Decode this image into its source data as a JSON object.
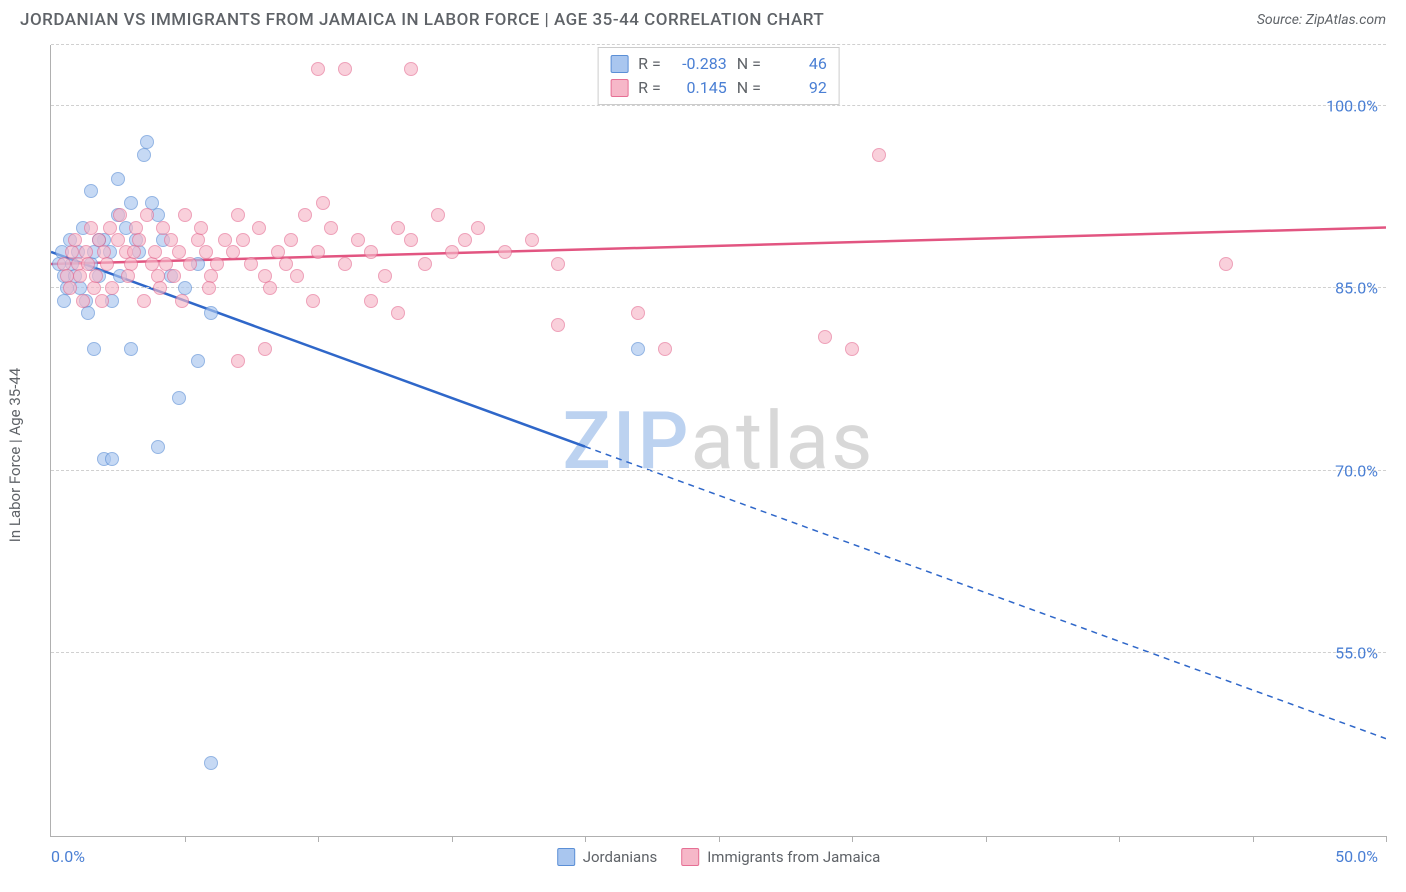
{
  "header": {
    "title": "JORDANIAN VS IMMIGRANTS FROM JAMAICA IN LABOR FORCE | AGE 35-44 CORRELATION CHART",
    "source": "Source: ZipAtlas.com"
  },
  "chart": {
    "type": "scatter",
    "y_axis_label": "In Labor Force | Age 35-44",
    "background_color": "#ffffff",
    "grid_color": "#d0d0d0",
    "axis_color": "#b0b0b0",
    "tick_label_color": "#4a7fd4",
    "watermark": {
      "part1": "ZIP",
      "part2": "atlas",
      "color1": "#bcd2f0",
      "color2": "#d8d8d8"
    },
    "xlim": [
      0,
      50
    ],
    "ylim": [
      40,
      105
    ],
    "x_ticks_pct": [
      10,
      20,
      30,
      40,
      50,
      60,
      70,
      80,
      90,
      100
    ],
    "x_min_label": "0.0%",
    "x_max_label": "50.0%",
    "y_ticks": [
      {
        "v": 100,
        "label": "100.0%"
      },
      {
        "v": 85,
        "label": "85.0%"
      },
      {
        "v": 70,
        "label": "70.0%"
      },
      {
        "v": 55,
        "label": "55.0%"
      }
    ],
    "series": [
      {
        "name": "Jordanians",
        "fill": "#a9c6ef",
        "stroke": "#5b8fd6",
        "line_color": "#2f67c9",
        "r": "-0.283",
        "n": "46",
        "trend": {
          "x1": 0,
          "y1": 88,
          "x2": 50,
          "y2": 48,
          "solid_until_x": 20
        },
        "points": [
          [
            0.3,
            87
          ],
          [
            0.5,
            86
          ],
          [
            0.4,
            88
          ],
          [
            0.6,
            85
          ],
          [
            0.8,
            87
          ],
          [
            0.7,
            89
          ],
          [
            0.5,
            84
          ],
          [
            0.9,
            86
          ],
          [
            1.0,
            88
          ],
          [
            1.2,
            90
          ],
          [
            1.1,
            85
          ],
          [
            1.3,
            84
          ],
          [
            1.5,
            87
          ],
          [
            1.4,
            83
          ],
          [
            1.6,
            88
          ],
          [
            1.8,
            86
          ],
          [
            2.0,
            89
          ],
          [
            2.2,
            88
          ],
          [
            2.5,
            91
          ],
          [
            2.3,
            84
          ],
          [
            2.8,
            90
          ],
          [
            2.6,
            86
          ],
          [
            3.0,
            92
          ],
          [
            3.2,
            89
          ],
          [
            3.5,
            96
          ],
          [
            3.3,
            88
          ],
          [
            3.8,
            92
          ],
          [
            3.6,
            97
          ],
          [
            4.0,
            91
          ],
          [
            4.2,
            89
          ],
          [
            4.5,
            86
          ],
          [
            5.0,
            85
          ],
          [
            5.5,
            87
          ],
          [
            6.0,
            83
          ],
          [
            2.0,
            71
          ],
          [
            2.3,
            71
          ],
          [
            4.8,
            76
          ],
          [
            5.5,
            79
          ],
          [
            4.0,
            72
          ],
          [
            1.6,
            80
          ],
          [
            3.0,
            80
          ],
          [
            6.0,
            46
          ],
          [
            22,
            80
          ],
          [
            1.5,
            93
          ],
          [
            2.5,
            94
          ],
          [
            1.8,
            89
          ]
        ]
      },
      {
        "name": "Immigrants from Jamaica",
        "fill": "#f6b7c8",
        "stroke": "#e66f94",
        "line_color": "#e25581",
        "r": "0.145",
        "n": "92",
        "trend": {
          "x1": 0,
          "y1": 87,
          "x2": 50,
          "y2": 90,
          "solid_until_x": 50
        },
        "points": [
          [
            0.5,
            87
          ],
          [
            0.6,
            86
          ],
          [
            0.8,
            88
          ],
          [
            0.7,
            85
          ],
          [
            1.0,
            87
          ],
          [
            0.9,
            89
          ],
          [
            1.1,
            86
          ],
          [
            1.2,
            84
          ],
          [
            1.3,
            88
          ],
          [
            1.5,
            90
          ],
          [
            1.4,
            87
          ],
          [
            1.6,
            85
          ],
          [
            1.8,
            89
          ],
          [
            1.7,
            86
          ],
          [
            2.0,
            88
          ],
          [
            1.9,
            84
          ],
          [
            2.2,
            90
          ],
          [
            2.1,
            87
          ],
          [
            2.5,
            89
          ],
          [
            2.3,
            85
          ],
          [
            2.8,
            88
          ],
          [
            2.6,
            91
          ],
          [
            3.0,
            87
          ],
          [
            2.9,
            86
          ],
          [
            3.2,
            90
          ],
          [
            3.1,
            88
          ],
          [
            3.5,
            84
          ],
          [
            3.3,
            89
          ],
          [
            3.8,
            87
          ],
          [
            3.6,
            91
          ],
          [
            4.0,
            86
          ],
          [
            3.9,
            88
          ],
          [
            4.2,
            90
          ],
          [
            4.1,
            85
          ],
          [
            4.5,
            89
          ],
          [
            4.3,
            87
          ],
          [
            4.8,
            88
          ],
          [
            4.6,
            86
          ],
          [
            5.0,
            91
          ],
          [
            4.9,
            84
          ],
          [
            5.5,
            89
          ],
          [
            5.2,
            87
          ],
          [
            5.8,
            88
          ],
          [
            5.6,
            90
          ],
          [
            6.0,
            86
          ],
          [
            5.9,
            85
          ],
          [
            6.5,
            89
          ],
          [
            6.2,
            87
          ],
          [
            7.0,
            91
          ],
          [
            6.8,
            88
          ],
          [
            7.5,
            87
          ],
          [
            7.2,
            89
          ],
          [
            8.0,
            86
          ],
          [
            7.8,
            90
          ],
          [
            8.5,
            88
          ],
          [
            8.2,
            85
          ],
          [
            9.0,
            89
          ],
          [
            8.8,
            87
          ],
          [
            9.5,
            91
          ],
          [
            9.2,
            86
          ],
          [
            10.0,
            88
          ],
          [
            9.8,
            84
          ],
          [
            10.5,
            90
          ],
          [
            10.2,
            92
          ],
          [
            11.0,
            87
          ],
          [
            11.5,
            89
          ],
          [
            12.0,
            88
          ],
          [
            12.5,
            86
          ],
          [
            13.0,
            90
          ],
          [
            13.5,
            89
          ],
          [
            14.0,
            87
          ],
          [
            14.5,
            91
          ],
          [
            15.0,
            88
          ],
          [
            15.5,
            89
          ],
          [
            16.0,
            90
          ],
          [
            17.0,
            88
          ],
          [
            18.0,
            89
          ],
          [
            19.0,
            87
          ],
          [
            7.0,
            79
          ],
          [
            8.0,
            80
          ],
          [
            12.0,
            84
          ],
          [
            13.0,
            83
          ],
          [
            19.0,
            82
          ],
          [
            22.0,
            83
          ],
          [
            23.0,
            80
          ],
          [
            30.0,
            80
          ],
          [
            29.0,
            81
          ],
          [
            10.0,
            103
          ],
          [
            11.0,
            103
          ],
          [
            13.5,
            103
          ],
          [
            31.0,
            96
          ],
          [
            44.0,
            87
          ]
        ]
      }
    ],
    "legend": {
      "series1_label": "Jordanians",
      "series2_label": "Immigrants from Jamaica"
    },
    "corr_box": {
      "r_label": "R =",
      "n_label": "N ="
    }
  }
}
